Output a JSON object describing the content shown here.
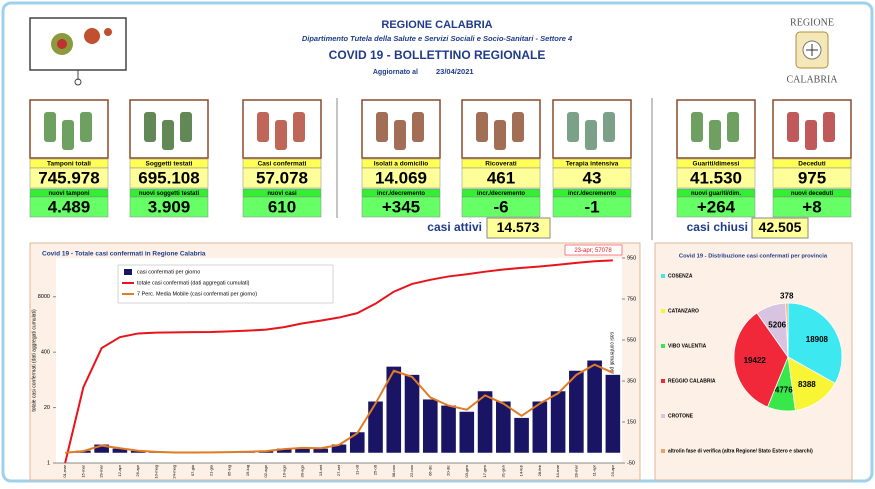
{
  "header": {
    "title": "REGIONE CALABRIA",
    "subtitle": "Dipartimento Tutela della Salute e Servizi Sociali e Socio-Sanitari - Settore 4",
    "bulletin": "COVID 19 - BOLLETTINO REGIONALE",
    "updated_label": "Aggiornato al",
    "date": "23/04/2021",
    "logo_top": "REGIONE",
    "logo_bottom": "CALABRIA"
  },
  "cards": [
    {
      "label": "Tamponi totali",
      "value": "745.978",
      "sub_label": "nuovi tamponi",
      "sub_value": "4.489"
    },
    {
      "label": "Soggetti testati",
      "value": "695.108",
      "sub_label": "nuovi soggetti testati",
      "sub_value": "3.909"
    },
    {
      "label": "Casi confermati",
      "value": "57.078",
      "sub_label": "nuovi casi",
      "sub_value": "610"
    },
    {
      "label": "Isolati a domicilio",
      "value": "14.069",
      "sub_label": "incr./decremento",
      "sub_value": "+345"
    },
    {
      "label": "Ricoverati",
      "value": "461",
      "sub_label": "incr./decremento",
      "sub_value": "-6"
    },
    {
      "label": "Terapia intensiva",
      "value": "43",
      "sub_label": "incr./decremento",
      "sub_value": "-1"
    },
    {
      "label": "Guariti/dimessi",
      "value": "41.530",
      "sub_label": "nuovi guariti/dim.",
      "sub_value": "+264"
    },
    {
      "label": "Deceduti",
      "value": "975",
      "sub_label": "nuovi deceduti",
      "sub_value": "+8"
    }
  ],
  "totals": {
    "active_label": "casi attivi",
    "active_value": "14.573",
    "closed_label": "casi chiusi",
    "closed_value": "42.505"
  },
  "chart_data": [
    {
      "type": "combo",
      "title": "Covid 19 - Totale casi confermati in Regione Calabria",
      "annotation": "23-apr; 57078",
      "x": [
        "01-mar",
        "15-mar",
        "29-mar",
        "12-apr",
        "26-apr",
        "10-mag",
        "24-mag",
        "07-giu",
        "21-giu",
        "05-lug",
        "19-lug",
        "02-ago",
        "16-ago",
        "30-ago",
        "13-set",
        "27-set",
        "11-ott",
        "25-ott",
        "08-nov",
        "22-nov",
        "06-dic",
        "20-dic",
        "03-gen",
        "17-gen",
        "31-gen",
        "14-feb",
        "28-feb",
        "14-mar",
        "28-mar",
        "11-apr",
        "23-apr"
      ],
      "series": [
        {
          "name": "casi confermati per giorno",
          "type": "bar",
          "axis": "y2",
          "color": "#1a1464",
          "values": [
            0,
            10,
            40,
            20,
            10,
            3,
            1,
            1,
            2,
            3,
            5,
            8,
            20,
            25,
            20,
            40,
            100,
            250,
            420,
            380,
            260,
            230,
            200,
            300,
            250,
            170,
            250,
            300,
            400,
            450,
            380
          ]
        },
        {
          "name": "totale casi confermati (dati aggregati cumulati)",
          "type": "line",
          "color": "#e8141c",
          "values": [
            1,
            60,
            500,
            900,
            1100,
            1150,
            1170,
            1180,
            1190,
            1230,
            1280,
            1350,
            1550,
            1900,
            2200,
            2600,
            3300,
            5500,
            10500,
            16000,
            20000,
            24000,
            27000,
            31000,
            35000,
            38000,
            41000,
            45000,
            50000,
            54500,
            57078
          ]
        },
        {
          "name": "7 Perc. Media Mobile (casi confermati per giorno)",
          "type": "line",
          "axis": "y2",
          "color": "#e07b24",
          "values": [
            0,
            8,
            35,
            22,
            10,
            4,
            1,
            1,
            2,
            3,
            5,
            8,
            18,
            24,
            22,
            38,
            95,
            240,
            400,
            370,
            270,
            230,
            210,
            280,
            240,
            180,
            240,
            290,
            380,
            430,
            390
          ]
        }
      ],
      "ylabel": "totale casi confermati (dati aggregati cumulati)",
      "y2label": "casi confermati per giorno",
      "ylog": true,
      "ylim": [
        1,
        65000
      ],
      "yticks": [
        1,
        20,
        400,
        8000
      ],
      "y2lim": [
        -50,
        950
      ],
      "y2ticks": [
        -50,
        150,
        350,
        550,
        750,
        950
      ]
    },
    {
      "type": "pie",
      "title": "Covid 19 - Distribuzione casi confermati per provincia",
      "categories": [
        "COSENZA",
        "CATANZARO",
        "VIBO VALENTIA",
        "REGGIO CALABRIA",
        "CROTONE",
        "altro/in fase di verifica (altra Regione/ Stato Estero e sbarchi)"
      ],
      "values": [
        18908,
        8388,
        4776,
        19422,
        5206,
        378
      ],
      "colors": [
        "#3ee8f0",
        "#f8f535",
        "#38e84a",
        "#f0283a",
        "#d8c4e0",
        "#f0a060"
      ]
    }
  ]
}
